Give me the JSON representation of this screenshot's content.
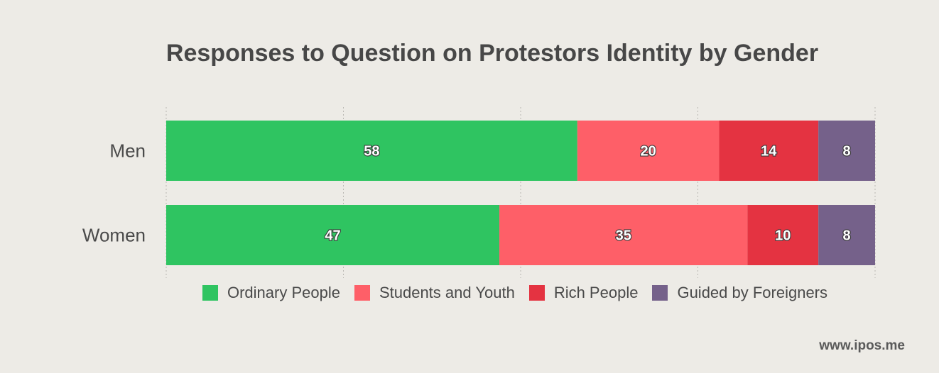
{
  "chart_data": {
    "type": "bar",
    "orientation": "horizontal",
    "stacked": true,
    "title": "Responses to Question on Protestors Identity by Gender",
    "categories": [
      "Men",
      "Women"
    ],
    "series": [
      {
        "name": "Ordinary People",
        "values": [
          58,
          47
        ],
        "color": "#2fc461"
      },
      {
        "name": "Students and Youth",
        "values": [
          20,
          35
        ],
        "color": "#fe5f68"
      },
      {
        "name": "Rich People",
        "values": [
          14,
          10
        ],
        "color": "#e43341"
      },
      {
        "name": "Guided by Foreigners",
        "values": [
          8,
          8
        ],
        "color": "#75618a"
      }
    ],
    "xlim": [
      0,
      100
    ],
    "grid": true,
    "legend_position": "bottom"
  },
  "source": "www.ipos.me"
}
